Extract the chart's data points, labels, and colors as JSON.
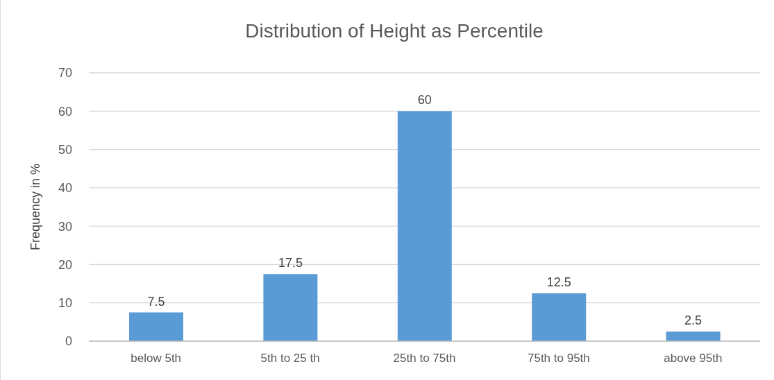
{
  "chart_data": {
    "type": "bar",
    "title": "Distribution of Height as Percentile",
    "ylabel": "Frequency in %",
    "categories": [
      "below 5th",
      "5th to 25 th",
      "25th to 75th",
      "75th to 95th",
      "above 95th"
    ],
    "values": [
      7.5,
      17.5,
      60,
      12.5,
      2.5
    ],
    "color": "#5b9bd5",
    "ylim": [
      0,
      70
    ],
    "yticks": [
      0,
      10,
      20,
      30,
      40,
      50,
      60,
      70
    ],
    "grid": "y",
    "data_labels": true
  }
}
